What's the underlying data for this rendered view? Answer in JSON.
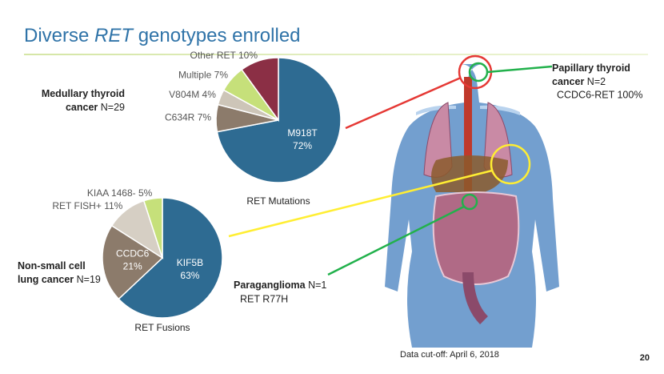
{
  "slide": {
    "title": [
      "Diverse ",
      "RET",
      " genotypes enrolled"
    ],
    "annotations": [
      {
        "bold": [
          "Medullary thyroid",
          "cancer"
        ],
        "rest": "N=29"
      },
      {
        "bold": [
          "Non-small cell",
          "lung cancer"
        ],
        "rest": "N=19"
      },
      {
        "bold": [
          "Papillary thyroid",
          "cancer"
        ],
        "rest": "N=2",
        "detail": "CCDC6-RET 100%"
      },
      {
        "bold": [
          "Paraganglioma"
        ],
        "rest": "N=1",
        "detail": "RET R77H"
      }
    ],
    "footnote": "Data cut-off: April 6, 2018",
    "page": "20"
  },
  "chart_data": [
    {
      "type": "pie",
      "title": "RET Mutations",
      "categories": [
        "M918T",
        "C634R",
        "V804M",
        "Multiple",
        "Other RET"
      ],
      "values": [
        72,
        7,
        4,
        7,
        10
      ],
      "value_labels": [
        "72%",
        "7%",
        "4%",
        "7%",
        "10%"
      ],
      "colors": [
        "#2e6b92",
        "#8c7b6b",
        "#cdc5b8",
        "#c6e07a",
        "#8b2f45"
      ]
    },
    {
      "type": "pie",
      "title": "RET Fusions",
      "categories": [
        "KIF5B",
        "CCDC6",
        "RET FISH+",
        "KIAA 1468-"
      ],
      "values": [
        63,
        21,
        11,
        5
      ],
      "value_labels": [
        "63%",
        "21%",
        "11%",
        "5%"
      ],
      "colors": [
        "#2e6b92",
        "#8c7b6b",
        "#d6cfc4",
        "#c6e07a"
      ]
    }
  ]
}
